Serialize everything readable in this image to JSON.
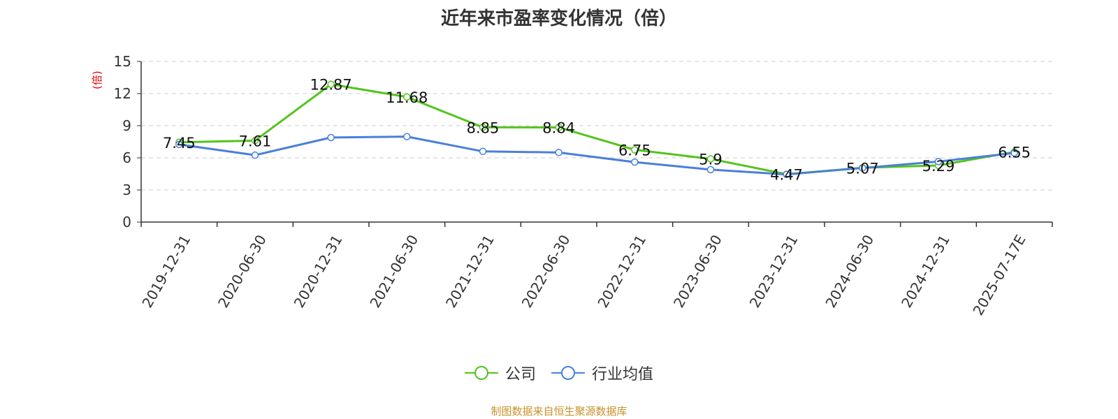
{
  "chart_data": {
    "type": "line",
    "title": "近年来市盈率变化情况（倍）",
    "ylabel": "(倍)",
    "xlabel": "",
    "categories": [
      "2019-12-31",
      "2020-06-30",
      "2020-12-31",
      "2021-06-30",
      "2021-12-31",
      "2022-06-30",
      "2022-12-31",
      "2023-06-30",
      "2023-12-31",
      "2024-06-30",
      "2024-12-31",
      "2025-07-17E"
    ],
    "ylim": [
      0,
      15
    ],
    "yticks": [
      0,
      3,
      6,
      9,
      12,
      15
    ],
    "grid": true,
    "legend_position": "bottom",
    "series": [
      {
        "name": "公司",
        "color": "#52c41a",
        "values": [
          7.45,
          7.61,
          12.87,
          11.68,
          8.85,
          8.84,
          6.75,
          5.9,
          4.47,
          5.07,
          5.29,
          6.55
        ],
        "labels": [
          "7.45",
          "7.61",
          "12.87",
          "11.68",
          "8.85",
          "8.84",
          "6.75",
          "5.9",
          "4.47",
          "5.07",
          "5.29",
          "6.55"
        ]
      },
      {
        "name": "行业均值",
        "color": "#4a7fdb",
        "values": [
          7.25,
          6.25,
          7.9,
          7.98,
          6.6,
          6.5,
          5.6,
          4.9,
          4.45,
          5.05,
          5.65,
          6.45
        ]
      }
    ],
    "source": "制图数据来自恒生聚源数据库"
  }
}
